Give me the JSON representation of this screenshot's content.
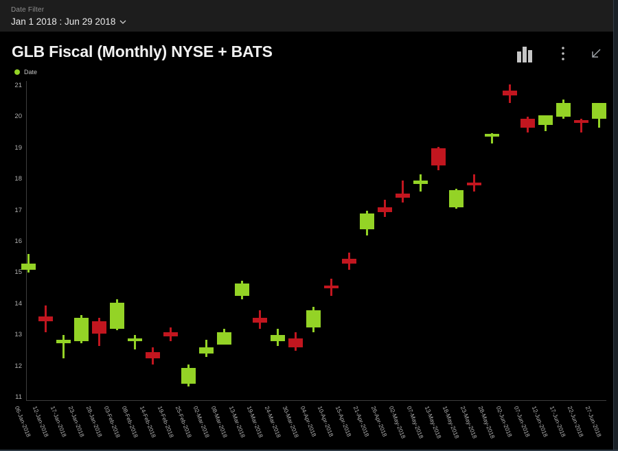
{
  "filter_bar": {
    "label": "Date Filter",
    "value": "Jan 1 2018 : Jun 29 2018"
  },
  "chart": {
    "title": "GLB Fiscal (Monthly) NYSE + BATS",
    "legend": {
      "label": "Date"
    },
    "toolbar": {
      "chart_type_icon": "bar-chart-icon",
      "more_icon": "kebab-menu-icon",
      "collapse_icon": "arrow-down-left-icon"
    }
  },
  "colors": {
    "up": "#94d326",
    "down": "#c2161f",
    "axis": "#3e3e3e",
    "tick_text": "#b3b3b3",
    "topbar_bg": "#1d1d1d",
    "chart_bg": "#000000",
    "title_text": "#f1f1f1"
  },
  "chart_data": {
    "type": "candlestick",
    "title": "GLB Fiscal (Monthly) NYSE + BATS",
    "xlabel": "Date",
    "ylabel": "",
    "ylim": [
      11,
      21
    ],
    "y_ticks": [
      21,
      20,
      19,
      18,
      17,
      16,
      15,
      14,
      13,
      12,
      11
    ],
    "grid": false,
    "legend_position": "top-left",
    "series": [
      {
        "name": "Date",
        "points": [
          {
            "date": "06-Jan-2018",
            "open": 15.1,
            "high": 15.6,
            "low": 15.0,
            "close": 15.3
          },
          {
            "date": "12-Jan-2018",
            "open": 13.6,
            "high": 13.95,
            "low": 13.1,
            "close": 13.45
          },
          {
            "date": "17-Jan-2018",
            "open": 12.75,
            "high": 13.0,
            "low": 12.25,
            "close": 12.85
          },
          {
            "date": "23-Jan-2018",
            "open": 12.8,
            "high": 13.65,
            "low": 12.75,
            "close": 13.55
          },
          {
            "date": "28-Jan-2018",
            "open": 13.45,
            "high": 13.55,
            "low": 12.65,
            "close": 13.05
          },
          {
            "date": "03-Feb-2018",
            "open": 13.2,
            "high": 14.15,
            "low": 13.15,
            "close": 14.05
          },
          {
            "date": "08-Feb-2018",
            "open": 12.8,
            "high": 13.0,
            "low": 12.55,
            "close": 12.9
          },
          {
            "date": "14-Feb-2018",
            "open": 12.45,
            "high": 12.6,
            "low": 12.05,
            "close": 12.25
          },
          {
            "date": "19-Feb-2018",
            "open": 13.1,
            "high": 13.25,
            "low": 12.8,
            "close": 12.95
          },
          {
            "date": "25-Feb-2018",
            "open": 11.45,
            "high": 12.05,
            "low": 11.35,
            "close": 11.95
          },
          {
            "date": "02-Mar-2018",
            "open": 12.4,
            "high": 12.85,
            "low": 12.3,
            "close": 12.6
          },
          {
            "date": "08-Mar-2018",
            "open": 12.7,
            "high": 13.2,
            "low": 12.7,
            "close": 13.1
          },
          {
            "date": "13-Mar-2018",
            "open": 14.25,
            "high": 14.75,
            "low": 14.15,
            "close": 14.65
          },
          {
            "date": "19-Mar-2018",
            "open": 13.55,
            "high": 13.8,
            "low": 13.2,
            "close": 13.4
          },
          {
            "date": "24-Mar-2018",
            "open": 12.8,
            "high": 13.2,
            "low": 12.65,
            "close": 13.0
          },
          {
            "date": "30-Mar-2018",
            "open": 12.9,
            "high": 13.1,
            "low": 12.5,
            "close": 12.6
          },
          {
            "date": "04-Apr-2018",
            "open": 13.25,
            "high": 13.9,
            "low": 13.1,
            "close": 13.8
          },
          {
            "date": "10-Apr-2018",
            "open": 14.6,
            "high": 14.8,
            "low": 14.25,
            "close": 14.5
          },
          {
            "date": "15-Apr-2018",
            "open": 15.45,
            "high": 15.65,
            "low": 15.1,
            "close": 15.3
          },
          {
            "date": "21-Apr-2018",
            "open": 16.4,
            "high": 17.0,
            "low": 16.2,
            "close": 16.9
          },
          {
            "date": "26-Apr-2018",
            "open": 17.1,
            "high": 17.35,
            "low": 16.8,
            "close": 16.95
          },
          {
            "date": "02-May-2018",
            "open": 17.55,
            "high": 17.95,
            "low": 17.25,
            "close": 17.4
          },
          {
            "date": "07-May-2018",
            "open": 17.85,
            "high": 18.15,
            "low": 17.6,
            "close": 17.95
          },
          {
            "date": "13-May-2018",
            "open": 19.0,
            "high": 19.05,
            "low": 18.3,
            "close": 18.45
          },
          {
            "date": "18-May-2018",
            "open": 17.1,
            "high": 17.7,
            "low": 17.05,
            "close": 17.65
          },
          {
            "date": "23-May-2018",
            "open": 17.9,
            "high": 18.15,
            "low": 17.6,
            "close": 17.8
          },
          {
            "date": "28-May-2018",
            "open": 19.38,
            "high": 19.47,
            "low": 19.15,
            "close": 19.45
          },
          {
            "date": "02-Jun-2018",
            "open": 20.85,
            "high": 21.05,
            "low": 20.45,
            "close": 20.7
          },
          {
            "date": "07-Jun-2018",
            "open": 19.95,
            "high": 20.0,
            "low": 19.5,
            "close": 19.65
          },
          {
            "date": "12-Jun-2018",
            "open": 19.75,
            "high": 20.05,
            "low": 19.55,
            "close": 20.05
          },
          {
            "date": "17-Jun-2018",
            "open": 20.0,
            "high": 20.55,
            "low": 19.95,
            "close": 20.45
          },
          {
            "date": "22-Jun-2018",
            "open": 19.9,
            "high": 19.95,
            "low": 19.5,
            "close": 19.8
          },
          {
            "date": "27-Jun-2018",
            "open": 19.95,
            "high": 20.45,
            "low": 19.65,
            "close": 20.45
          }
        ]
      }
    ]
  }
}
